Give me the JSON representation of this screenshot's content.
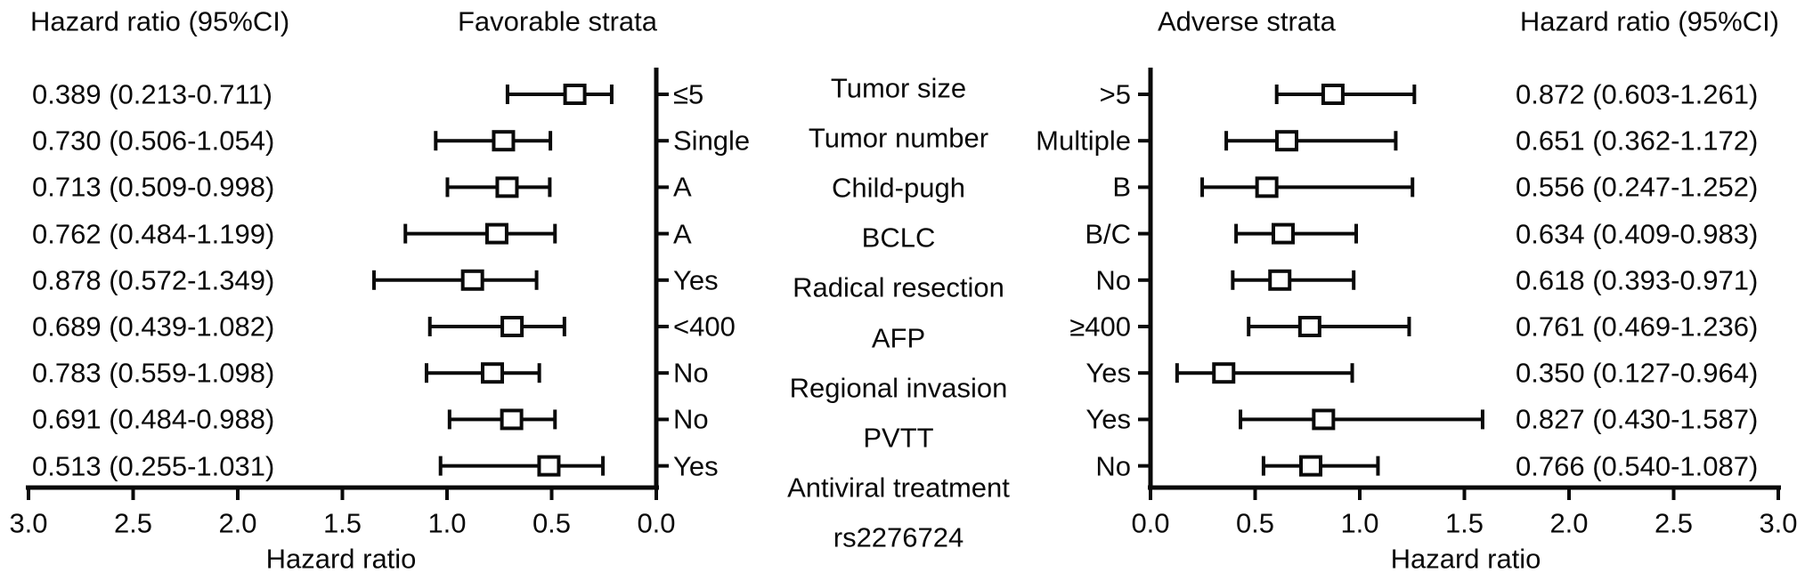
{
  "chart_data": {
    "type": "forest",
    "orientation": "horizontal",
    "axis": {
      "label": "Hazard ratio",
      "min": 0.0,
      "max": 3.0,
      "tick_step": 0.5,
      "tick_labels": [
        "0.0",
        "0.5",
        "1.0",
        "1.5",
        "2.0",
        "2.5",
        "3.0"
      ],
      "left_plot_direction": "reversed",
      "right_plot_direction": "normal"
    },
    "variables": [
      "Tumor size",
      "Tumor number",
      "Child-pugh",
      "BCLC",
      "Radical resection",
      "AFP",
      "Regional invasion",
      "PVTT",
      "Antiviral treatment"
    ],
    "snp": "rs2276724",
    "favorable": {
      "header": "Favorable strata",
      "value_header": "Hazard ratio (95%CI)",
      "rows": [
        {
          "stratum": "≤5",
          "hr": 0.389,
          "ci_low": 0.213,
          "ci_high": 0.711,
          "label": "0.389 (0.213-0.711)"
        },
        {
          "stratum": "Single",
          "hr": 0.73,
          "ci_low": 0.506,
          "ci_high": 1.054,
          "label": "0.730 (0.506-1.054)"
        },
        {
          "stratum": "A",
          "hr": 0.713,
          "ci_low": 0.509,
          "ci_high": 0.998,
          "label": "0.713 (0.509-0.998)"
        },
        {
          "stratum": "A",
          "hr": 0.762,
          "ci_low": 0.484,
          "ci_high": 1.199,
          "label": "0.762 (0.484-1.199)"
        },
        {
          "stratum": "Yes",
          "hr": 0.878,
          "ci_low": 0.572,
          "ci_high": 1.349,
          "label": "0.878 (0.572-1.349)"
        },
        {
          "stratum": "<400",
          "hr": 0.689,
          "ci_low": 0.439,
          "ci_high": 1.082,
          "label": "0.689 (0.439-1.082)"
        },
        {
          "stratum": "No",
          "hr": 0.783,
          "ci_low": 0.559,
          "ci_high": 1.098,
          "label": "0.783 (0.559-1.098)"
        },
        {
          "stratum": "No",
          "hr": 0.691,
          "ci_low": 0.484,
          "ci_high": 0.988,
          "label": "0.691 (0.484-0.988)"
        },
        {
          "stratum": "Yes",
          "hr": 0.513,
          "ci_low": 0.255,
          "ci_high": 1.031,
          "label": "0.513 (0.255-1.031)"
        }
      ]
    },
    "adverse": {
      "header": "Adverse strata",
      "value_header": "Hazard ratio (95%CI)",
      "rows": [
        {
          "stratum": ">5",
          "hr": 0.872,
          "ci_low": 0.603,
          "ci_high": 1.261,
          "label": "0.872 (0.603-1.261)"
        },
        {
          "stratum": "Multiple",
          "hr": 0.651,
          "ci_low": 0.362,
          "ci_high": 1.172,
          "label": "0.651 (0.362-1.172)"
        },
        {
          "stratum": "B",
          "hr": 0.556,
          "ci_low": 0.247,
          "ci_high": 1.252,
          "label": "0.556 (0.247-1.252)"
        },
        {
          "stratum": "B/C",
          "hr": 0.634,
          "ci_low": 0.409,
          "ci_high": 0.983,
          "label": "0.634 (0.409-0.983)"
        },
        {
          "stratum": "No",
          "hr": 0.618,
          "ci_low": 0.393,
          "ci_high": 0.971,
          "label": "0.618 (0.393-0.971)"
        },
        {
          "stratum": "≥400",
          "hr": 0.761,
          "ci_low": 0.469,
          "ci_high": 1.236,
          "label": "0.761 (0.469-1.236)"
        },
        {
          "stratum": "Yes",
          "hr": 0.35,
          "ci_low": 0.127,
          "ci_high": 0.964,
          "label": "0.350 (0.127-0.964)"
        },
        {
          "stratum": "Yes",
          "hr": 0.827,
          "ci_low": 0.43,
          "ci_high": 1.587,
          "label": "0.827 (0.430-1.587)"
        },
        {
          "stratum": "No",
          "hr": 0.766,
          "ci_low": 0.54,
          "ci_high": 1.087,
          "label": "0.766 (0.540-1.087)"
        }
      ]
    },
    "colors": {
      "ink": "#0a0a0a",
      "background": "#ffffff"
    }
  }
}
